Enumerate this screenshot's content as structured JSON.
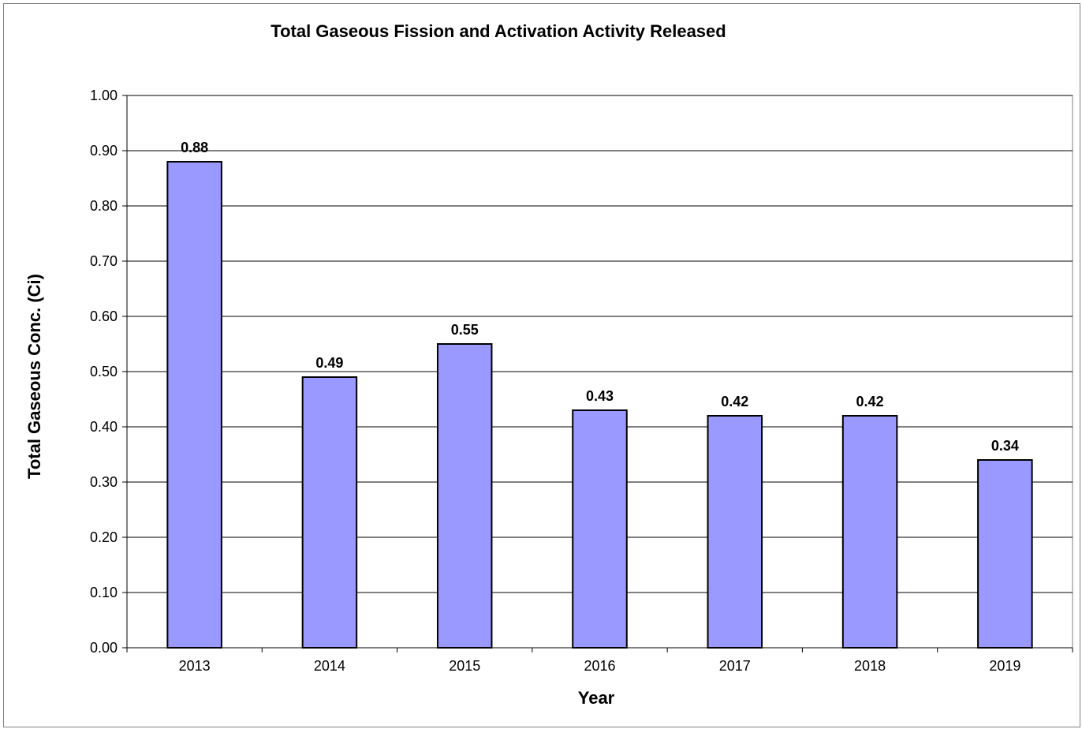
{
  "chart_data": {
    "type": "bar",
    "title": "Total Gaseous Fission and Activation Activity Released",
    "xlabel": "Year",
    "ylabel": "Total Gaseous Conc. (Ci)",
    "categories": [
      "2013",
      "2014",
      "2015",
      "2016",
      "2017",
      "2018",
      "2019"
    ],
    "values": [
      0.88,
      0.49,
      0.55,
      0.43,
      0.42,
      0.42,
      0.34
    ],
    "data_labels": [
      "0.88",
      "0.49",
      "0.55",
      "0.43",
      "0.42",
      "0.42",
      "0.34"
    ],
    "ylim": [
      0,
      1.0
    ],
    "yticks": [
      "0.00",
      "0.10",
      "0.20",
      "0.30",
      "0.40",
      "0.50",
      "0.60",
      "0.70",
      "0.80",
      "0.90",
      "1.00"
    ],
    "grid": true,
    "legend": "none",
    "bar_color": "#9999ff",
    "bar_border_color": "#000000",
    "gridline_color": "#000000"
  }
}
